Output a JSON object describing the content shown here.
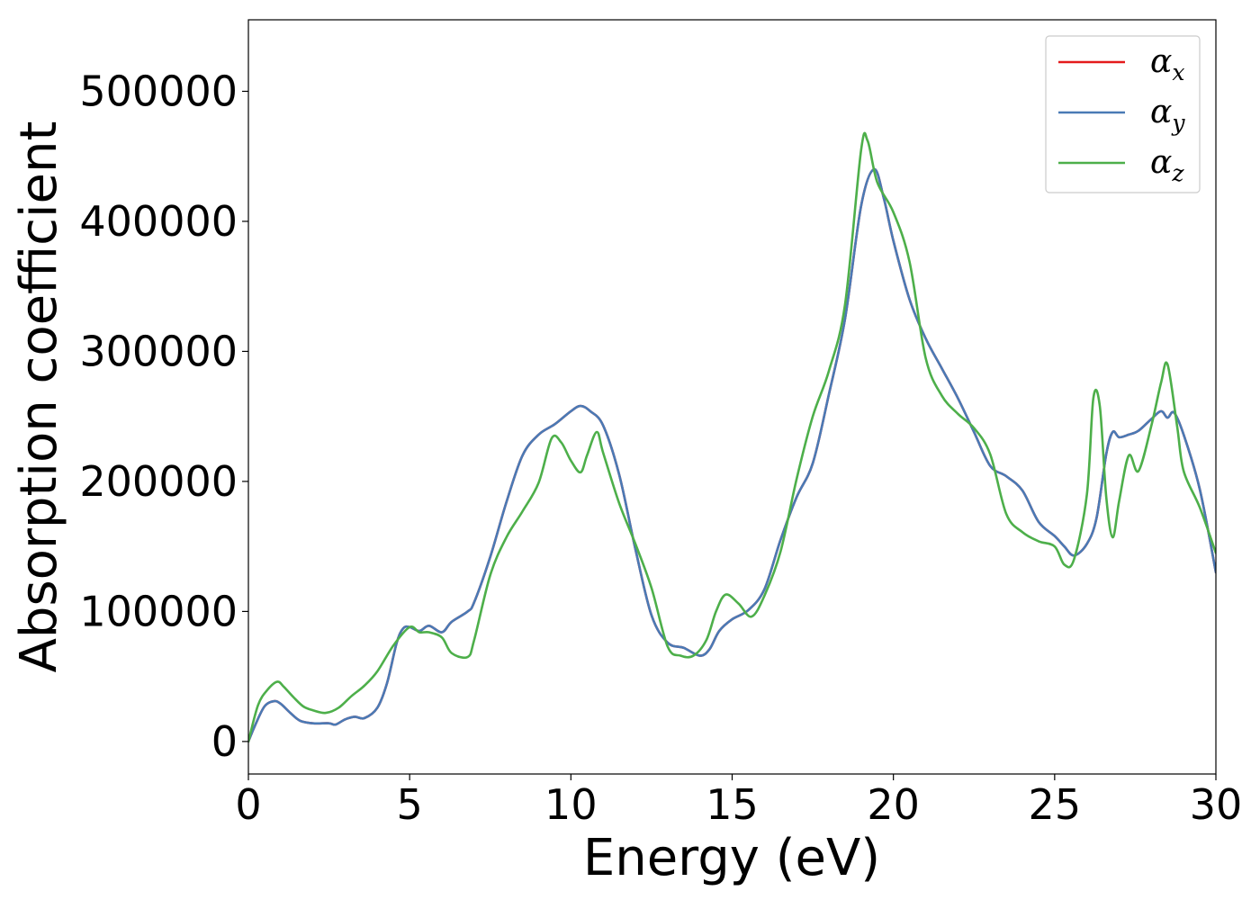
{
  "chart_data": {
    "type": "line",
    "xlabel": "Energy (eV)",
    "ylabel": "Absorption coefficient",
    "xlim": [
      0,
      30
    ],
    "ylim": [
      -25000,
      555000
    ],
    "xticks": [
      0,
      5,
      10,
      15,
      20,
      25,
      30
    ],
    "xtick_labels": [
      "0",
      "5",
      "10",
      "15",
      "20",
      "25",
      "30"
    ],
    "yticks": [
      0,
      100000,
      200000,
      300000,
      400000,
      500000
    ],
    "ytick_labels": [
      "0",
      "100000",
      "200000",
      "300000",
      "400000",
      "500000"
    ],
    "grid": false,
    "legend_position": "top-right",
    "series": [
      {
        "name": "α",
        "subscript": "x",
        "color": "#e41a1c",
        "x": [
          0,
          0.2,
          0.5,
          0.8,
          1.0,
          1.3,
          1.6,
          2.0,
          2.5,
          2.7,
          3.0,
          3.3,
          3.6,
          4.0,
          4.3,
          4.6,
          4.8,
          5.0,
          5.3,
          5.6,
          6.0,
          6.3,
          6.8,
          7.0,
          7.5,
          8.0,
          8.5,
          9.0,
          9.5,
          10.0,
          10.3,
          10.6,
          11.0,
          11.5,
          12.0,
          12.5,
          13.0,
          13.5,
          14.0,
          14.3,
          14.6,
          15.0,
          15.5,
          16.0,
          16.5,
          17.0,
          17.5,
          18.0,
          18.5,
          19.0,
          19.4,
          19.7,
          20.0,
          20.5,
          21.0,
          21.5,
          22.0,
          22.5,
          23.0,
          23.5,
          24.0,
          24.5,
          25.0,
          25.3,
          25.6,
          26.0,
          26.3,
          26.6,
          26.8,
          27.0,
          27.3,
          27.6,
          28.0,
          28.3,
          28.5,
          28.7,
          29.0,
          29.5,
          30.0
        ],
        "y": [
          0,
          12000,
          27000,
          31000,
          29000,
          22000,
          16000,
          14000,
          14000,
          13000,
          17000,
          19000,
          18000,
          26000,
          45000,
          76000,
          87000,
          88000,
          85000,
          89000,
          84000,
          92000,
          100000,
          107000,
          142000,
          184000,
          220000,
          236000,
          244000,
          254000,
          258000,
          254000,
          243000,
          205000,
          148000,
          97000,
          76000,
          72000,
          66000,
          71000,
          85000,
          94000,
          101000,
          117000,
          155000,
          188000,
          214000,
          267000,
          325000,
          412000,
          440000,
          418000,
          385000,
          340000,
          310000,
          287000,
          264000,
          238000,
          212000,
          204000,
          193000,
          169000,
          158000,
          150000,
          143000,
          152000,
          172000,
          221000,
          238000,
          234000,
          236000,
          239000,
          248000,
          254000,
          249000,
          253000,
          236000,
          194000,
          130000
        ]
      },
      {
        "name": "α",
        "subscript": "y",
        "color": "#4a7ab5",
        "x": [
          0,
          0.2,
          0.5,
          0.8,
          1.0,
          1.3,
          1.6,
          2.0,
          2.5,
          2.7,
          3.0,
          3.3,
          3.6,
          4.0,
          4.3,
          4.6,
          4.8,
          5.0,
          5.3,
          5.6,
          6.0,
          6.3,
          6.8,
          7.0,
          7.5,
          8.0,
          8.5,
          9.0,
          9.5,
          10.0,
          10.3,
          10.6,
          11.0,
          11.5,
          12.0,
          12.5,
          13.0,
          13.5,
          14.0,
          14.3,
          14.6,
          15.0,
          15.5,
          16.0,
          16.5,
          17.0,
          17.5,
          18.0,
          18.5,
          19.0,
          19.4,
          19.7,
          20.0,
          20.5,
          21.0,
          21.5,
          22.0,
          22.5,
          23.0,
          23.5,
          24.0,
          24.5,
          25.0,
          25.3,
          25.6,
          26.0,
          26.3,
          26.6,
          26.8,
          27.0,
          27.3,
          27.6,
          28.0,
          28.3,
          28.5,
          28.7,
          29.0,
          29.5,
          30.0
        ],
        "y": [
          0,
          12000,
          27000,
          31000,
          29000,
          22000,
          16000,
          14000,
          14000,
          13000,
          17000,
          19000,
          18000,
          26000,
          45000,
          76000,
          87000,
          88000,
          85000,
          89000,
          84000,
          92000,
          100000,
          107000,
          142000,
          184000,
          220000,
          236000,
          244000,
          254000,
          258000,
          254000,
          243000,
          205000,
          148000,
          97000,
          76000,
          72000,
          66000,
          71000,
          85000,
          94000,
          101000,
          117000,
          155000,
          188000,
          214000,
          267000,
          325000,
          412000,
          440000,
          418000,
          385000,
          340000,
          310000,
          287000,
          264000,
          238000,
          212000,
          204000,
          193000,
          169000,
          158000,
          150000,
          143000,
          152000,
          172000,
          221000,
          238000,
          234000,
          236000,
          239000,
          248000,
          254000,
          249000,
          253000,
          236000,
          194000,
          130000
        ]
      },
      {
        "name": "α",
        "subscript": "z",
        "color": "#4daf4a",
        "x": [
          0,
          0.3,
          0.6,
          0.9,
          1.1,
          1.4,
          1.7,
          2.0,
          2.4,
          2.8,
          3.2,
          3.6,
          4.0,
          4.5,
          5.0,
          5.3,
          5.6,
          6.0,
          6.3,
          6.8,
          7.0,
          7.5,
          8.0,
          8.5,
          9.0,
          9.4,
          9.7,
          10.0,
          10.3,
          10.5,
          10.8,
          11.0,
          11.5,
          12.0,
          12.5,
          13.0,
          13.4,
          13.8,
          14.2,
          14.5,
          14.8,
          15.2,
          15.6,
          16.0,
          16.5,
          17.0,
          17.5,
          18.0,
          18.5,
          19.0,
          19.2,
          19.5,
          20.0,
          20.5,
          21.0,
          21.5,
          22.0,
          22.5,
          23.0,
          23.5,
          24.0,
          24.5,
          25.0,
          25.3,
          25.6,
          26.0,
          26.2,
          26.4,
          26.6,
          26.8,
          27.0,
          27.3,
          27.6,
          28.0,
          28.3,
          28.5,
          28.8,
          29.0,
          29.5,
          30.0
        ],
        "y": [
          0,
          28000,
          40000,
          46000,
          42000,
          34000,
          27000,
          24000,
          22000,
          26000,
          35000,
          43000,
          54000,
          74000,
          88000,
          84000,
          84000,
          80000,
          68000,
          65000,
          78000,
          128000,
          157000,
          177000,
          199000,
          233000,
          230000,
          216000,
          207000,
          220000,
          238000,
          222000,
          183000,
          152000,
          118000,
          73000,
          66000,
          66000,
          78000,
          100000,
          113000,
          106000,
          96000,
          112000,
          146000,
          202000,
          250000,
          285000,
          336000,
          455000,
          462000,
          430000,
          407000,
          369000,
          295000,
          266000,
          252000,
          241000,
          221000,
          175000,
          161000,
          154000,
          150000,
          136000,
          140000,
          190000,
          264000,
          258000,
          188000,
          157000,
          185000,
          220000,
          208000,
          243000,
          276000,
          290000,
          242000,
          208000,
          180000,
          145000
        ]
      }
    ]
  }
}
